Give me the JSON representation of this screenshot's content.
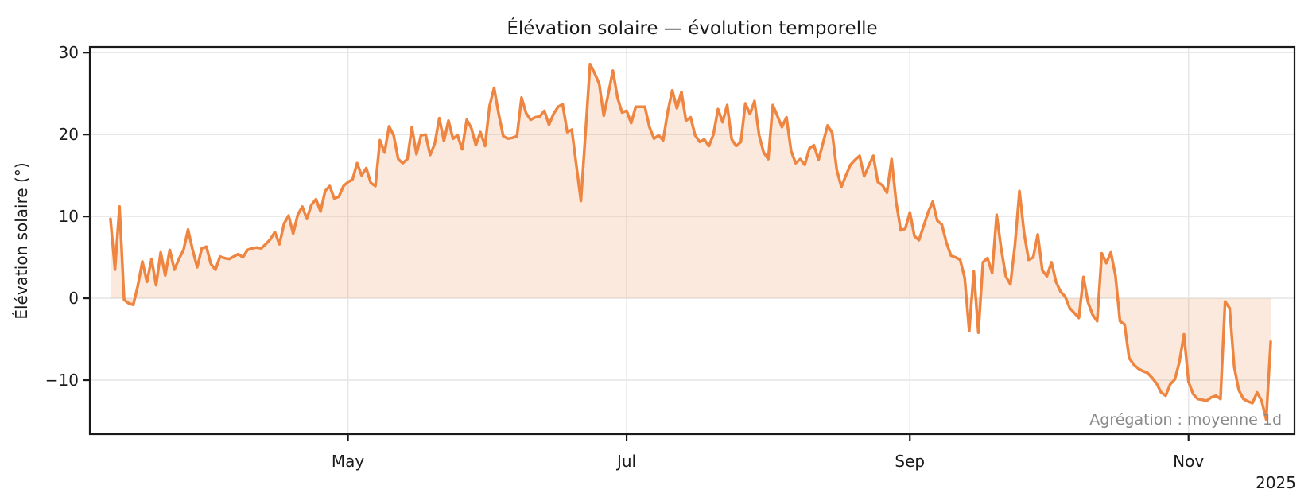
{
  "chart_data": {
    "type": "line",
    "title": "Élévation solaire — évolution temporelle",
    "ylabel": "Élévation solaire (°)",
    "annotation": "Agrégation : moyenne 1d",
    "year_label": "2025",
    "x_start_date": "2025-03-10",
    "x_start_doy": 69,
    "x_step_days": 1,
    "values": [
      9.7,
      3.5,
      11.2,
      -0.2,
      -0.6,
      -0.8,
      1.5,
      4.5,
      2.0,
      4.8,
      1.6,
      5.6,
      2.8,
      5.9,
      3.5,
      4.8,
      5.9,
      8.4,
      5.9,
      3.8,
      6.1,
      6.3,
      4.2,
      3.5,
      5.1,
      4.9,
      4.8,
      5.1,
      5.4,
      5.0,
      5.9,
      6.1,
      6.2,
      6.1,
      6.6,
      7.2,
      8.1,
      6.6,
      9.1,
      10.1,
      7.9,
      10.2,
      11.2,
      9.7,
      11.4,
      12.1,
      10.6,
      13.1,
      13.7,
      12.2,
      12.4,
      13.7,
      14.2,
      14.5,
      16.5,
      15.0,
      15.9,
      14.1,
      13.7,
      19.3,
      17.8,
      21.0,
      19.9,
      17.0,
      16.5,
      17.0,
      20.9,
      17.6,
      19.9,
      20.0,
      17.5,
      18.9,
      22.0,
      19.2,
      21.7,
      19.5,
      19.9,
      18.2,
      21.8,
      20.8,
      18.7,
      20.3,
      18.6,
      23.5,
      25.7,
      22.5,
      19.8,
      19.5,
      19.6,
      19.8,
      24.5,
      22.6,
      21.8,
      22.1,
      22.2,
      22.9,
      21.2,
      22.5,
      23.4,
      23.7,
      20.3,
      20.6,
      16.2,
      11.9,
      20.3,
      28.6,
      27.5,
      26.2,
      22.3,
      25.0,
      27.8,
      24.5,
      22.7,
      22.9,
      21.4,
      23.4,
      23.4,
      23.4,
      20.9,
      19.5,
      19.9,
      19.3,
      22.8,
      25.4,
      23.2,
      25.2,
      21.7,
      22.1,
      19.9,
      19.1,
      19.4,
      18.6,
      20.0,
      23.1,
      21.5,
      23.6,
      19.4,
      18.6,
      19.1,
      23.8,
      22.5,
      24.1,
      19.9,
      17.8,
      17.0,
      23.6,
      22.3,
      20.9,
      22.1,
      18.0,
      16.5,
      17.0,
      16.3,
      18.3,
      18.7,
      16.9,
      19.0,
      21.1,
      20.2,
      15.7,
      13.6,
      15.0,
      16.3,
      16.9,
      17.4,
      14.9,
      16.2,
      17.4,
      14.2,
      13.8,
      12.9,
      17.0,
      11.8,
      8.3,
      8.5,
      10.5,
      7.6,
      7.1,
      8.8,
      10.5,
      11.8,
      9.5,
      9.0,
      6.8,
      5.2,
      5.0,
      4.7,
      2.5,
      -4.0,
      3.3,
      -4.2,
      4.4,
      4.9,
      3.1,
      10.2,
      6.0,
      2.7,
      1.7,
      6.5,
      13.1,
      8.0,
      4.7,
      5.0,
      7.8,
      3.4,
      2.7,
      4.4,
      2.0,
      0.8,
      0.2,
      -1.2,
      -1.8,
      -2.4,
      2.6,
      -0.5,
      -2.0,
      -2.8,
      5.5,
      4.3,
      5.6,
      2.8,
      -2.8,
      -3.2,
      -7.3,
      -8.1,
      -8.6,
      -8.9,
      -9.1,
      -9.7,
      -10.4,
      -11.5,
      -11.9,
      -10.5,
      -9.9,
      -7.8,
      -4.4,
      -10.2,
      -11.7,
      -12.3,
      -12.4,
      -12.5,
      -12.1,
      -11.9,
      -12.3,
      -0.4,
      -1.2,
      -8.4,
      -11.2,
      -12.3,
      -12.6,
      -12.8,
      -11.5,
      -12.5,
      -14.8,
      -5.3
    ],
    "baseline": 0,
    "xticks": [
      {
        "label": "May",
        "doy": 121
      },
      {
        "label": "Jul",
        "doy": 182
      },
      {
        "label": "Sep",
        "doy": 244
      },
      {
        "label": "Nov",
        "doy": 305
      }
    ],
    "yticks": [
      {
        "label": "30",
        "value": 30
      },
      {
        "label": "20",
        "value": 20
      },
      {
        "label": "10",
        "value": 10
      },
      {
        "label": "0",
        "value": 0
      },
      {
        "label": "−10",
        "value": -10
      }
    ],
    "xlim_doy": [
      64.5,
      328.2
    ],
    "ylim": [
      -16.6,
      30.7
    ],
    "grid": true,
    "legend": null,
    "line_color": "#ee8540",
    "fill_color": "#ee8540",
    "fill_opacity": 0.18,
    "grid_color": "#e7e7e7",
    "spine_color": "#1a1a1a",
    "text_color": "#1a1a1a",
    "annotation_color": "#8a8a8a"
  }
}
